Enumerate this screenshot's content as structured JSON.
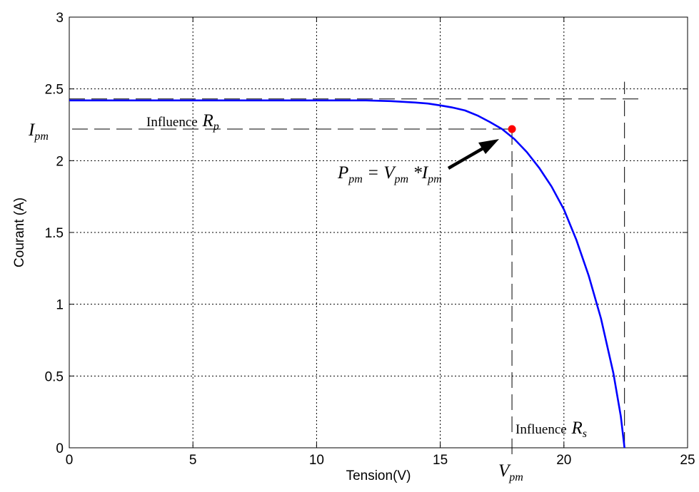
{
  "chart_data": {
    "type": "line",
    "xlabel": "Tension(V)",
    "ylabel": "Courant (A)",
    "xlim": [
      0,
      25
    ],
    "ylim": [
      0,
      3
    ],
    "xticks": [
      "0",
      "5",
      "10",
      "15",
      "20",
      "25"
    ],
    "yticks": [
      "0",
      "0.5",
      "1",
      "1.5",
      "2",
      "2.5",
      "3"
    ],
    "grid": true,
    "series": [
      {
        "color": "#0000ff",
        "x": [
          0,
          2,
          4,
          6,
          8,
          10,
          11,
          12,
          13,
          14,
          14.5,
          15,
          15.5,
          16,
          16.5,
          17,
          17.5,
          18,
          18.5,
          19,
          19.5,
          20,
          20.5,
          21,
          21.5,
          22,
          22.3,
          22.45
        ],
        "y": [
          2.42,
          2.42,
          2.42,
          2.42,
          2.42,
          2.42,
          2.42,
          2.42,
          2.415,
          2.405,
          2.398,
          2.385,
          2.37,
          2.35,
          2.315,
          2.27,
          2.22,
          2.15,
          2.06,
          1.95,
          1.82,
          1.66,
          1.45,
          1.2,
          0.9,
          0.52,
          0.22,
          0.0
        ]
      }
    ],
    "max_power_point": {
      "x": 17.9,
      "y": 2.22,
      "color": "#ff0000"
    },
    "annotations": {
      "ipm_label": {
        "main": "I",
        "sub": "pm"
      },
      "vpm_label": {
        "main": "V",
        "sub": "pm"
      },
      "influence_rp": {
        "text": "Influence ",
        "main": "R",
        "sub": "p"
      },
      "influence_rs": {
        "text": "Influence ",
        "main": "R",
        "sub": "s"
      },
      "ppm_formula": {
        "p": "P",
        "p_sub": "pm",
        "eq": " = ",
        "v": "V",
        "v_sub": "pm",
        "times": " *",
        "i": "I",
        "i_sub": "pm"
      }
    },
    "reference_lines": {
      "isc": 2.43,
      "voc": 22.45
    }
  }
}
